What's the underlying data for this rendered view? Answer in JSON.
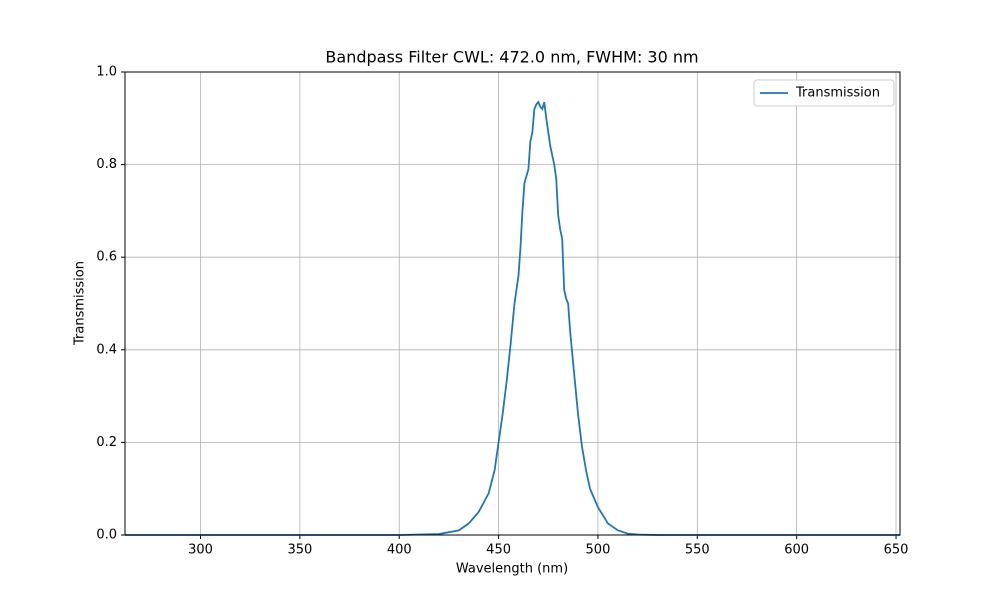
{
  "chart_data": {
    "type": "line",
    "title": "Bandpass Filter CWL: 472.0 nm, FWHM: 30 nm",
    "x_label": "Wavelength (nm)",
    "y_label": "Transmission",
    "x": [
      262,
      300,
      350,
      400,
      420,
      430,
      435,
      440,
      445,
      448,
      450,
      452,
      454,
      456,
      458,
      460,
      461,
      462,
      463,
      465,
      466,
      467,
      468,
      469,
      470,
      471,
      472,
      473,
      474,
      475,
      476,
      477,
      478,
      479,
      480,
      481,
      482,
      483,
      484,
      485,
      486,
      488,
      490,
      492,
      494,
      496,
      498,
      500,
      505,
      510,
      515,
      520,
      530,
      550,
      600,
      652
    ],
    "series": [
      {
        "name": "Transmission",
        "color": "#1f77b4",
        "values": [
          0,
          0,
          0,
          0,
          0.002,
          0.01,
          0.025,
          0.05,
          0.09,
          0.14,
          0.2,
          0.26,
          0.33,
          0.41,
          0.5,
          0.56,
          0.62,
          0.7,
          0.76,
          0.79,
          0.85,
          0.87,
          0.92,
          0.93,
          0.935,
          0.925,
          0.92,
          0.935,
          0.9,
          0.87,
          0.84,
          0.82,
          0.8,
          0.77,
          0.69,
          0.66,
          0.64,
          0.53,
          0.51,
          0.5,
          0.44,
          0.35,
          0.26,
          0.19,
          0.14,
          0.1,
          0.08,
          0.06,
          0.025,
          0.01,
          0.003,
          0.001,
          0,
          0,
          0,
          0
        ]
      }
    ],
    "xlim": [
      262,
      652
    ],
    "ylim": [
      0,
      1
    ],
    "xticks": [
      300,
      350,
      400,
      450,
      500,
      550,
      600,
      650
    ],
    "yticks": [
      {
        "value": 0,
        "label": "0.0"
      },
      {
        "value": 0.2,
        "label": "0.2"
      },
      {
        "value": 0.4,
        "label": "0.4"
      },
      {
        "value": 0.6,
        "label": "0.6"
      },
      {
        "value": 0.8,
        "label": "0.8"
      },
      {
        "value": 1,
        "label": "1.0"
      }
    ],
    "grid": true,
    "legend": "upper right"
  }
}
